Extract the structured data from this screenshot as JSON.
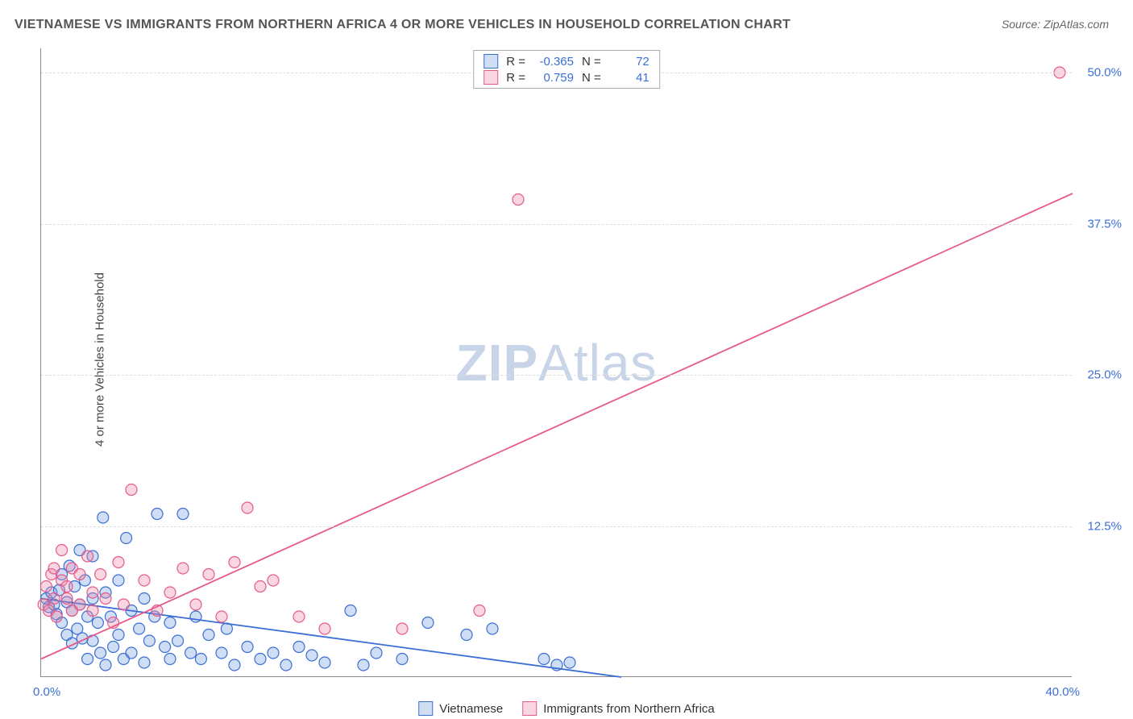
{
  "title": "VIETNAMESE VS IMMIGRANTS FROM NORTHERN AFRICA 4 OR MORE VEHICLES IN HOUSEHOLD CORRELATION CHART",
  "source": "Source: ZipAtlas.com",
  "y_axis_label": "4 or more Vehicles in Household",
  "watermark_bold": "ZIP",
  "watermark_rest": "Atlas",
  "chart": {
    "type": "scatter",
    "xlim": [
      0,
      40
    ],
    "ylim": [
      0,
      52
    ],
    "x_ticks": [
      {
        "v": 0,
        "label": "0.0%"
      },
      {
        "v": 40,
        "label": "40.0%"
      }
    ],
    "y_ticks": [
      {
        "v": 12.5,
        "label": "12.5%"
      },
      {
        "v": 25.0,
        "label": "25.0%"
      },
      {
        "v": 37.5,
        "label": "37.5%"
      },
      {
        "v": 50.0,
        "label": "50.0%"
      }
    ],
    "grid_color": "#dddddd",
    "background_color": "#ffffff",
    "axis_color": "#888888",
    "marker_radius": 7,
    "marker_stroke_width": 1.2,
    "line_width": 1.8,
    "series": [
      {
        "name": "Vietnamese",
        "stroke": "#3b6fd6",
        "fill": "rgba(120,160,220,0.35)",
        "R": "-0.365",
        "N": "72",
        "regression": {
          "x1": 0,
          "y1": 6.5,
          "x2": 22.5,
          "y2": 0
        },
        "points": [
          [
            0.2,
            6.5
          ],
          [
            0.3,
            5.8
          ],
          [
            0.4,
            7.0
          ],
          [
            0.5,
            6.0
          ],
          [
            0.6,
            5.2
          ],
          [
            0.7,
            7.2
          ],
          [
            0.8,
            4.5
          ],
          [
            0.8,
            8.5
          ],
          [
            1.0,
            6.2
          ],
          [
            1.0,
            3.5
          ],
          [
            1.1,
            9.2
          ],
          [
            1.2,
            5.5
          ],
          [
            1.2,
            2.8
          ],
          [
            1.3,
            7.5
          ],
          [
            1.4,
            4.0
          ],
          [
            1.5,
            10.5
          ],
          [
            1.5,
            6.0
          ],
          [
            1.6,
            3.2
          ],
          [
            1.7,
            8.0
          ],
          [
            1.8,
            5.0
          ],
          [
            1.8,
            1.5
          ],
          [
            2.0,
            10.0
          ],
          [
            2.0,
            6.5
          ],
          [
            2.0,
            3.0
          ],
          [
            2.2,
            4.5
          ],
          [
            2.3,
            2.0
          ],
          [
            2.4,
            13.2
          ],
          [
            2.5,
            7.0
          ],
          [
            2.5,
            1.0
          ],
          [
            2.7,
            5.0
          ],
          [
            2.8,
            2.5
          ],
          [
            3.0,
            8.0
          ],
          [
            3.0,
            3.5
          ],
          [
            3.2,
            1.5
          ],
          [
            3.3,
            11.5
          ],
          [
            3.5,
            5.5
          ],
          [
            3.5,
            2.0
          ],
          [
            3.8,
            4.0
          ],
          [
            4.0,
            6.5
          ],
          [
            4.0,
            1.2
          ],
          [
            4.2,
            3.0
          ],
          [
            4.4,
            5.0
          ],
          [
            4.5,
            13.5
          ],
          [
            4.8,
            2.5
          ],
          [
            5.0,
            4.5
          ],
          [
            5.0,
            1.5
          ],
          [
            5.3,
            3.0
          ],
          [
            5.5,
            13.5
          ],
          [
            5.8,
            2.0
          ],
          [
            6.0,
            5.0
          ],
          [
            6.2,
            1.5
          ],
          [
            6.5,
            3.5
          ],
          [
            7.0,
            2.0
          ],
          [
            7.2,
            4.0
          ],
          [
            7.5,
            1.0
          ],
          [
            8.0,
            2.5
          ],
          [
            8.5,
            1.5
          ],
          [
            9.0,
            2.0
          ],
          [
            9.5,
            1.0
          ],
          [
            10.0,
            2.5
          ],
          [
            10.5,
            1.8
          ],
          [
            11.0,
            1.2
          ],
          [
            12.0,
            5.5
          ],
          [
            12.5,
            1.0
          ],
          [
            13.0,
            2.0
          ],
          [
            14.0,
            1.5
          ],
          [
            15.0,
            4.5
          ],
          [
            16.5,
            3.5
          ],
          [
            17.5,
            4.0
          ],
          [
            19.5,
            1.5
          ],
          [
            20.0,
            1.0
          ],
          [
            20.5,
            1.2
          ]
        ]
      },
      {
        "name": "Immigrants from Northern Africa",
        "stroke": "#e85a8a",
        "fill": "rgba(235,140,170,0.35)",
        "R": "0.759",
        "N": "41",
        "regression": {
          "x1": 0,
          "y1": 1.5,
          "x2": 40,
          "y2": 40.0
        },
        "points": [
          [
            0.1,
            6.0
          ],
          [
            0.2,
            7.5
          ],
          [
            0.3,
            5.5
          ],
          [
            0.4,
            8.5
          ],
          [
            0.5,
            6.5
          ],
          [
            0.5,
            9.0
          ],
          [
            0.6,
            5.0
          ],
          [
            0.8,
            8.0
          ],
          [
            0.8,
            10.5
          ],
          [
            1.0,
            6.5
          ],
          [
            1.0,
            7.5
          ],
          [
            1.2,
            9.0
          ],
          [
            1.2,
            5.5
          ],
          [
            1.5,
            8.5
          ],
          [
            1.5,
            6.0
          ],
          [
            1.8,
            10.0
          ],
          [
            2.0,
            7.0
          ],
          [
            2.0,
            5.5
          ],
          [
            2.3,
            8.5
          ],
          [
            2.5,
            6.5
          ],
          [
            2.8,
            4.5
          ],
          [
            3.0,
            9.5
          ],
          [
            3.2,
            6.0
          ],
          [
            3.5,
            15.5
          ],
          [
            4.0,
            8.0
          ],
          [
            4.5,
            5.5
          ],
          [
            5.0,
            7.0
          ],
          [
            5.5,
            9.0
          ],
          [
            6.0,
            6.0
          ],
          [
            6.5,
            8.5
          ],
          [
            7.0,
            5.0
          ],
          [
            7.5,
            9.5
          ],
          [
            8.0,
            14.0
          ],
          [
            8.5,
            7.5
          ],
          [
            9.0,
            8.0
          ],
          [
            10.0,
            5.0
          ],
          [
            11.0,
            4.0
          ],
          [
            14.0,
            4.0
          ],
          [
            17.0,
            5.5
          ],
          [
            18.5,
            39.5
          ],
          [
            39.5,
            50.0
          ]
        ]
      }
    ]
  },
  "legend": {
    "series1_label": "Vietnamese",
    "series2_label": "Immigrants from Northern Africa"
  },
  "stats_labels": {
    "R": "R =",
    "N": "N ="
  }
}
